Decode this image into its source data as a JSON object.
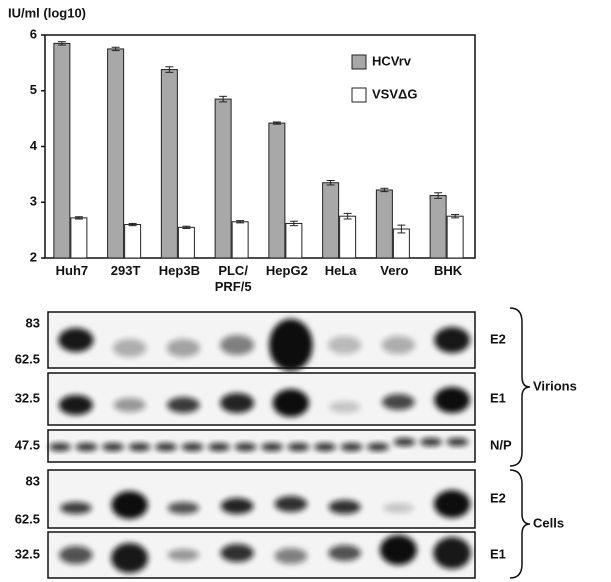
{
  "chart_data": {
    "type": "bar",
    "y_label": "IU/ml (log10)",
    "categories": [
      "Huh7",
      "293T",
      "Hep3B",
      "PLC/\nPRF/5",
      "HepG2",
      "HeLa",
      "Vero",
      "BHK"
    ],
    "series": [
      {
        "name": "HCVrv",
        "color": "#a8a8a8",
        "values": [
          5.85,
          5.75,
          5.38,
          4.85,
          4.42,
          3.35,
          3.22,
          3.12
        ],
        "errors": [
          0.03,
          0.03,
          0.05,
          0.05,
          0.02,
          0.04,
          0.03,
          0.05
        ]
      },
      {
        "name": "VSVΔG",
        "color": "#ffffff",
        "values": [
          2.72,
          2.6,
          2.55,
          2.65,
          2.62,
          2.75,
          2.52,
          2.75
        ],
        "errors": [
          0.02,
          0.02,
          0.02,
          0.02,
          0.04,
          0.05,
          0.07,
          0.03
        ]
      }
    ],
    "ylim": [
      2,
      6
    ],
    "yticks": [
      2,
      3,
      4,
      5,
      6
    ],
    "legend": "upper right"
  },
  "blots": {
    "panels": [
      {
        "label": "E2",
        "markers": [
          83,
          62.5
        ]
      },
      {
        "label": "E1",
        "markers": [
          32.5
        ]
      },
      {
        "label": "N/P",
        "markers": [
          47.5
        ]
      },
      {
        "label": "E2",
        "markers": [
          83,
          62.5
        ]
      },
      {
        "label": "E1",
        "markers": [
          32.5
        ]
      }
    ],
    "groups": [
      "Virions",
      "Cells"
    ]
  }
}
